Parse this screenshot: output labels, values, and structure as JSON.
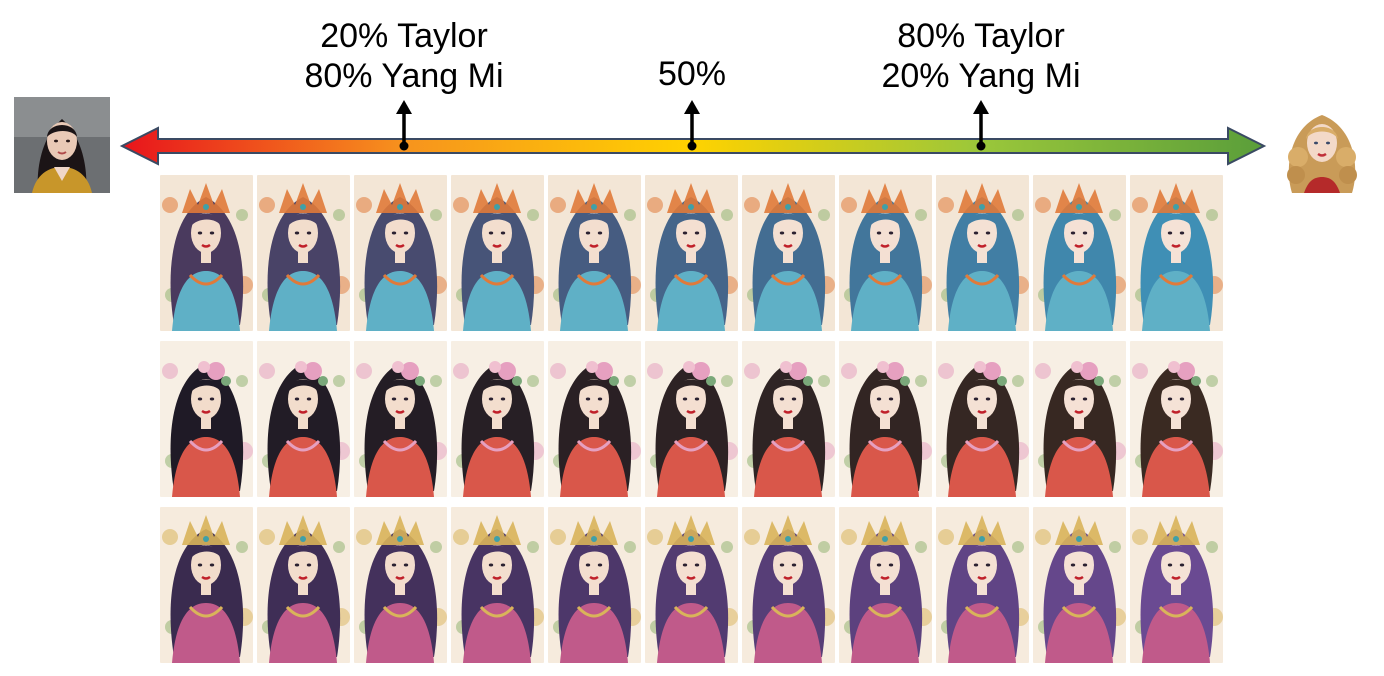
{
  "labels": {
    "left_line1": "20% Taylor",
    "left_line2": "80% Yang Mi",
    "middle": "50%",
    "right_line1": "80% Taylor",
    "right_line2": "20% Yang Mi"
  },
  "arrow": {
    "gradient_colors": [
      "#e8141c",
      "#f7941d",
      "#ffd200",
      "#9bc73a",
      "#5a9e3a"
    ],
    "stroke_color": "#3a4a63"
  },
  "portraits": {
    "left": {
      "subject": "woman-dark-hair-portrait",
      "jacket_color": "#c8962a"
    },
    "right": {
      "subject": "woman-blonde-curly-portrait",
      "top_color": "#b52a2a"
    }
  },
  "grid": {
    "rows": [
      {
        "theme": "crown-blue-hair",
        "bg": "#f3e6d6",
        "hair_start": "#4a3a5e",
        "hair_end": "#3f8fb5",
        "accent": "#e07a3a",
        "dress": "#5fb0c6"
      },
      {
        "theme": "flower-dark-hair",
        "bg": "#f7efe4",
        "hair_start": "#1f1a26",
        "hair_end": "#3a2a22",
        "accent": "#e6a0c0",
        "dress": "#d9574a"
      },
      {
        "theme": "crown-purple-hair",
        "bg": "#f6ebdd",
        "hair_start": "#3a2b4f",
        "hair_end": "#6a4a92",
        "accent": "#d9b45a",
        "dress": "#c05a8a"
      }
    ],
    "columns": 11
  }
}
